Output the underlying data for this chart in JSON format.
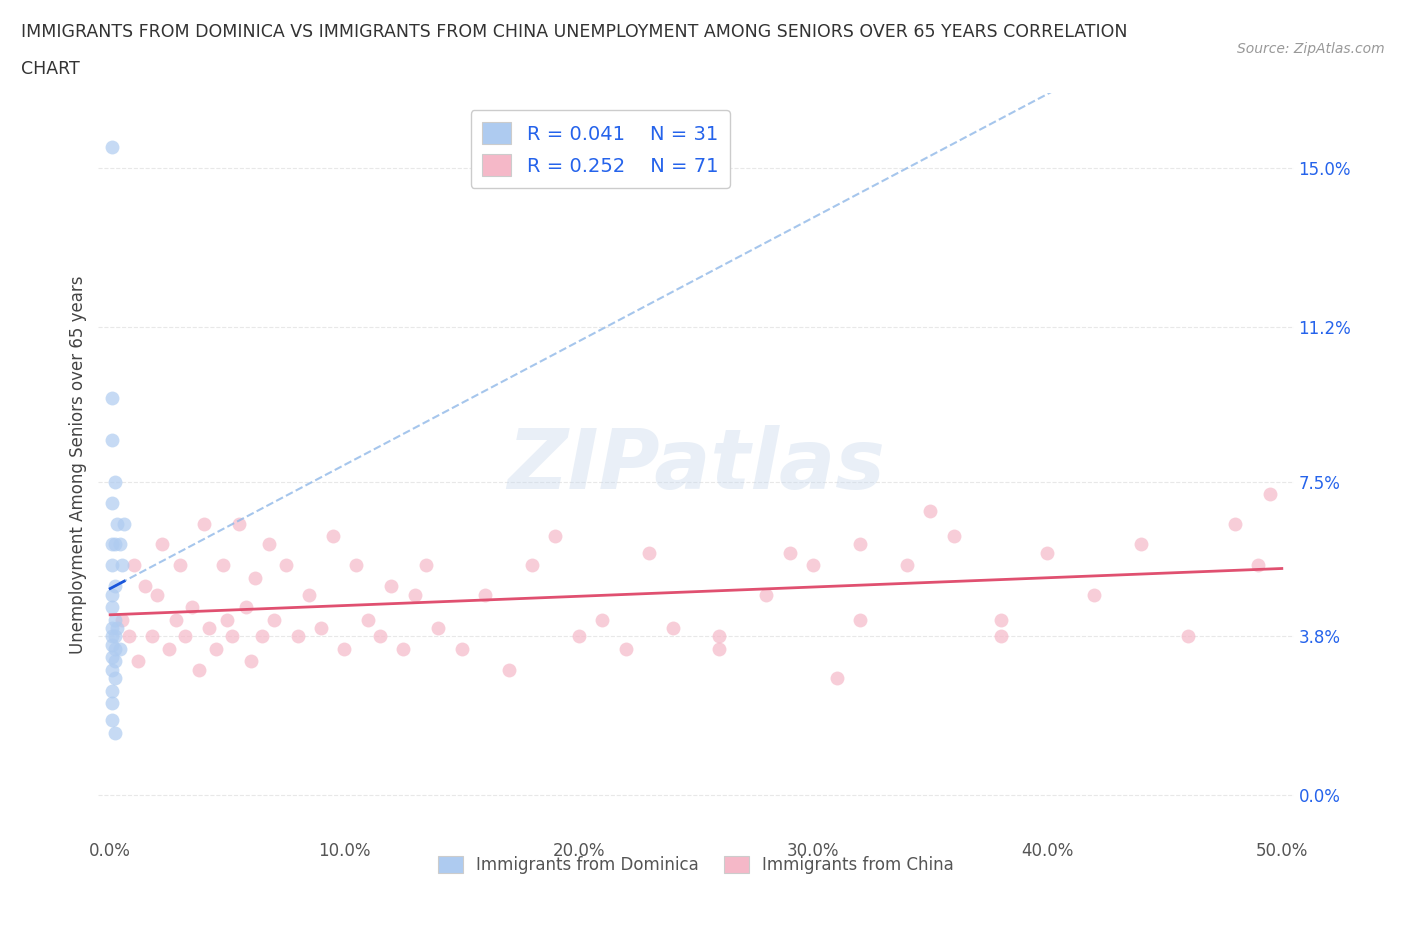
{
  "title_line1": "IMMIGRANTS FROM DOMINICA VS IMMIGRANTS FROM CHINA UNEMPLOYMENT AMONG SENIORS OVER 65 YEARS CORRELATION",
  "title_line2": "CHART",
  "source": "Source: ZipAtlas.com",
  "ylabel": "Unemployment Among Seniors over 65 years",
  "xlim": [
    -0.005,
    0.505
  ],
  "ylim": [
    -0.01,
    0.168
  ],
  "yticks": [
    0.0,
    0.038,
    0.075,
    0.112,
    0.15
  ],
  "ytick_labels": [
    "0.0%",
    "3.8%",
    "7.5%",
    "11.2%",
    "15.0%"
  ],
  "xticks": [
    0.0,
    0.1,
    0.2,
    0.3,
    0.4,
    0.5
  ],
  "xtick_labels": [
    "0.0%",
    "10.0%",
    "20.0%",
    "30.0%",
    "40.0%",
    "50.0%"
  ],
  "dominica_color": "#aecbf0",
  "dominica_line_color_solid": "#1a56db",
  "dominica_line_color_dashed": "#90b8e8",
  "china_color": "#f5b8c8",
  "china_line_color": "#e05070",
  "R_dominica": 0.041,
  "N_dominica": 31,
  "R_china": 0.252,
  "N_china": 71,
  "dominica_x": [
    0.001,
    0.001,
    0.001,
    0.001,
    0.001,
    0.001,
    0.001,
    0.001,
    0.001,
    0.001,
    0.001,
    0.001,
    0.001,
    0.001,
    0.001,
    0.001,
    0.002,
    0.002,
    0.002,
    0.002,
    0.002,
    0.002,
    0.002,
    0.002,
    0.002,
    0.003,
    0.003,
    0.004,
    0.004,
    0.005,
    0.006
  ],
  "dominica_y": [
    0.155,
    0.095,
    0.085,
    0.07,
    0.06,
    0.055,
    0.048,
    0.045,
    0.04,
    0.038,
    0.036,
    0.033,
    0.03,
    0.025,
    0.022,
    0.018,
    0.075,
    0.06,
    0.05,
    0.042,
    0.038,
    0.035,
    0.032,
    0.028,
    0.015,
    0.065,
    0.04,
    0.06,
    0.035,
    0.055,
    0.065
  ],
  "china_x": [
    0.005,
    0.008,
    0.01,
    0.012,
    0.015,
    0.018,
    0.02,
    0.022,
    0.025,
    0.028,
    0.03,
    0.032,
    0.035,
    0.038,
    0.04,
    0.042,
    0.045,
    0.048,
    0.05,
    0.052,
    0.055,
    0.058,
    0.06,
    0.062,
    0.065,
    0.068,
    0.07,
    0.075,
    0.08,
    0.085,
    0.09,
    0.095,
    0.1,
    0.105,
    0.11,
    0.115,
    0.12,
    0.125,
    0.13,
    0.135,
    0.14,
    0.15,
    0.16,
    0.17,
    0.18,
    0.19,
    0.2,
    0.21,
    0.22,
    0.23,
    0.24,
    0.26,
    0.28,
    0.3,
    0.31,
    0.32,
    0.34,
    0.36,
    0.38,
    0.4,
    0.42,
    0.44,
    0.46,
    0.48,
    0.49,
    0.495,
    0.38,
    0.35,
    0.32,
    0.29,
    0.26
  ],
  "china_y": [
    0.042,
    0.038,
    0.055,
    0.032,
    0.05,
    0.038,
    0.048,
    0.06,
    0.035,
    0.042,
    0.055,
    0.038,
    0.045,
    0.03,
    0.065,
    0.04,
    0.035,
    0.055,
    0.042,
    0.038,
    0.065,
    0.045,
    0.032,
    0.052,
    0.038,
    0.06,
    0.042,
    0.055,
    0.038,
    0.048,
    0.04,
    0.062,
    0.035,
    0.055,
    0.042,
    0.038,
    0.05,
    0.035,
    0.048,
    0.055,
    0.04,
    0.035,
    0.048,
    0.03,
    0.055,
    0.062,
    0.038,
    0.042,
    0.035,
    0.058,
    0.04,
    0.038,
    0.048,
    0.055,
    0.028,
    0.06,
    0.055,
    0.062,
    0.042,
    0.058,
    0.048,
    0.06,
    0.038,
    0.065,
    0.055,
    0.072,
    0.038,
    0.068,
    0.042,
    0.058,
    0.035
  ],
  "background_color": "#ffffff",
  "grid_color": "#e8e8e8"
}
